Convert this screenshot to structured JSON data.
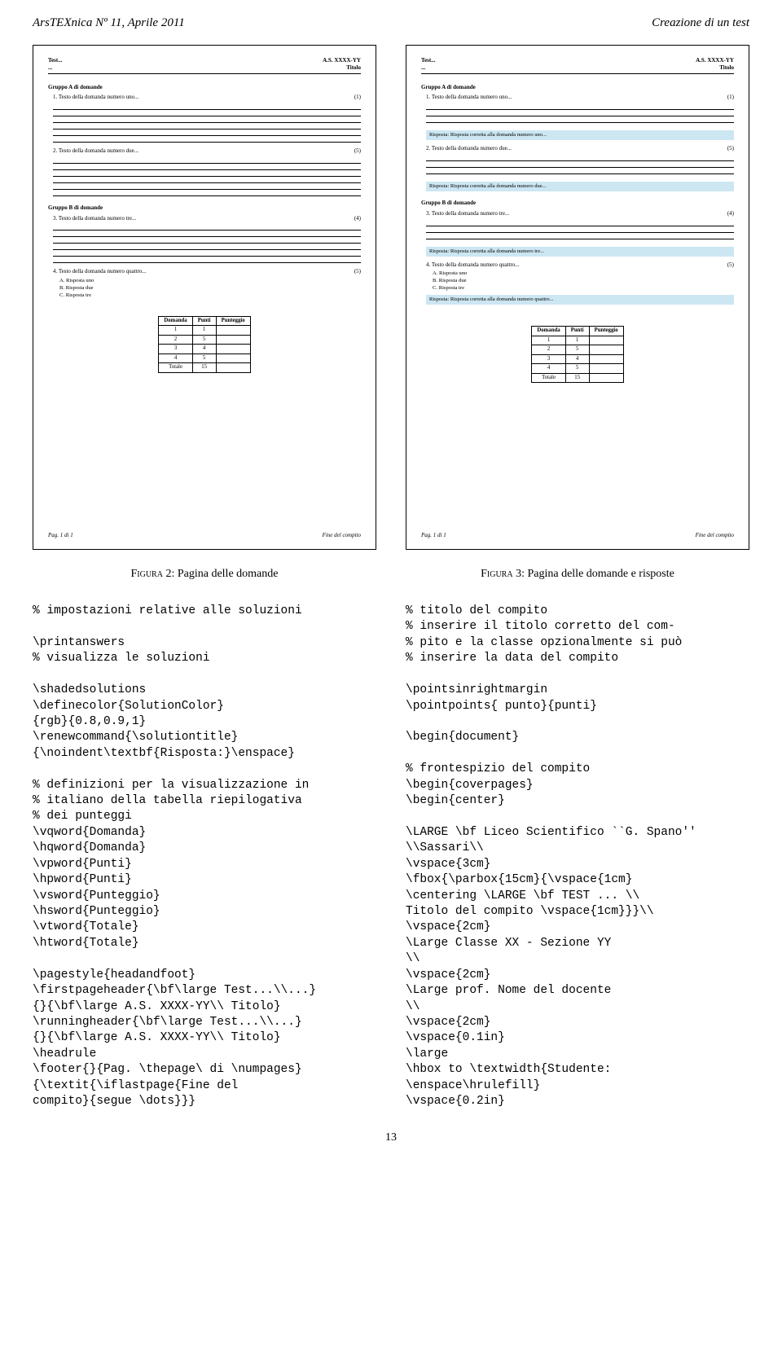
{
  "header": {
    "left": "ArsTEXnica Nº 11, Aprile 2011",
    "right": "Creazione di un test"
  },
  "sheet": {
    "head_left_1": "Test...",
    "head_left_2": "...",
    "head_right_1": "A.S. XXXX-YY",
    "head_right_2": "Titolo",
    "group_a": "Gruppo A di domande",
    "q1": "1. Testo della domanda numero uno...",
    "q1_pts": "(1)",
    "q2": "2. Testo della domanda numero due...",
    "q2_pts": "(5)",
    "group_b": "Gruppo B di domande",
    "q3": "3. Testo della domanda numero tre...",
    "q3_pts": "(4)",
    "q4": "4. Testo della domanda numero quattro...",
    "q4_pts": "(5)",
    "opt_a": "A. Risposta uno",
    "opt_b": "B. Risposta due",
    "opt_c": "C. Risposta tre",
    "ans1": "Risposta: Risposta corretta alla domanda numero uno...",
    "ans2": "Risposta: Risposta corretta alla domanda numero due...",
    "ans3": "Risposta: Risposta corretta alla domanda numero tre...",
    "ans4": "Risposta: Risposta corretta alla domanda numero quattro...",
    "answer_bg": "#cce6f2",
    "foot_left": "Pag. 1 di 1",
    "foot_right": "Fine del compito"
  },
  "scoretable": {
    "headers": [
      "Domanda",
      "Punti",
      "Punteggio"
    ],
    "rows": [
      [
        "1",
        "1",
        ""
      ],
      [
        "2",
        "5",
        ""
      ],
      [
        "3",
        "4",
        ""
      ],
      [
        "4",
        "5",
        ""
      ],
      [
        "Totale",
        "15",
        ""
      ]
    ]
  },
  "captions": {
    "fig2_a": "Figura 2: ",
    "fig2_b": "Pagina delle domande",
    "fig3_a": "Figura 3: ",
    "fig3_b": "Pagina delle domande e risposte"
  },
  "code_left": "% impostazioni relative alle soluzioni\n\n\\printanswers\n% visualizza le soluzioni\n\n\\shadedsolutions\n\\definecolor{SolutionColor}\n{rgb}{0.8,0.9,1}\n\\renewcommand{\\solutiontitle}\n{\\noindent\\textbf{Risposta:}\\enspace}\n\n% definizioni per la visualizzazione in\n% italiano della tabella riepilogativa\n% dei punteggi\n\\vqword{Domanda}\n\\hqword{Domanda}\n\\vpword{Punti}\n\\hpword{Punti}\n\\vsword{Punteggio}\n\\hsword{Punteggio}\n\\vtword{Totale}\n\\htword{Totale}\n\n\\pagestyle{headandfoot}\n\\firstpageheader{\\bf\\large Test...\\\\...}\n{}{\\bf\\large A.S. XXXX-YY\\\\ Titolo}\n\\runningheader{\\bf\\large Test...\\\\...}\n{}{\\bf\\large A.S. XXXX-YY\\\\ Titolo}\n\\headrule\n\\footer{}{Pag. \\thepage\\ di \\numpages}\n{\\textit{\\iflastpage{Fine del\ncompito}{segue \\dots}}}",
  "code_right": "% titolo del compito\n% inserire il titolo corretto del com-\n% pito e la classe opzionalmente si può\n% inserire la data del compito\n\n\\pointsinrightmargin\n\\pointpoints{ punto}{punti}\n\n\\begin{document}\n\n% frontespizio del compito\n\\begin{coverpages}\n\\begin{center}\n\n\\LARGE \\bf Liceo Scientifico ``G. Spano''\n\\\\Sassari\\\\\n\\vspace{3cm}\n\\fbox{\\parbox{15cm}{\\vspace{1cm}\n\\centering \\LARGE \\bf TEST ... \\\\\nTitolo del compito \\vspace{1cm}}}\\\\\n\\vspace{2cm}\n\\Large Classe XX - Sezione YY\n\\\\\n\\vspace{2cm}\n\\Large prof. Nome del docente\n\\\\\n\\vspace{2cm}\n\\vspace{0.1in}\n\\large\n\\hbox to \\textwidth{Studente:\n\\enspace\\hrulefill}\n\\vspace{0.2in}",
  "pageno": "13"
}
